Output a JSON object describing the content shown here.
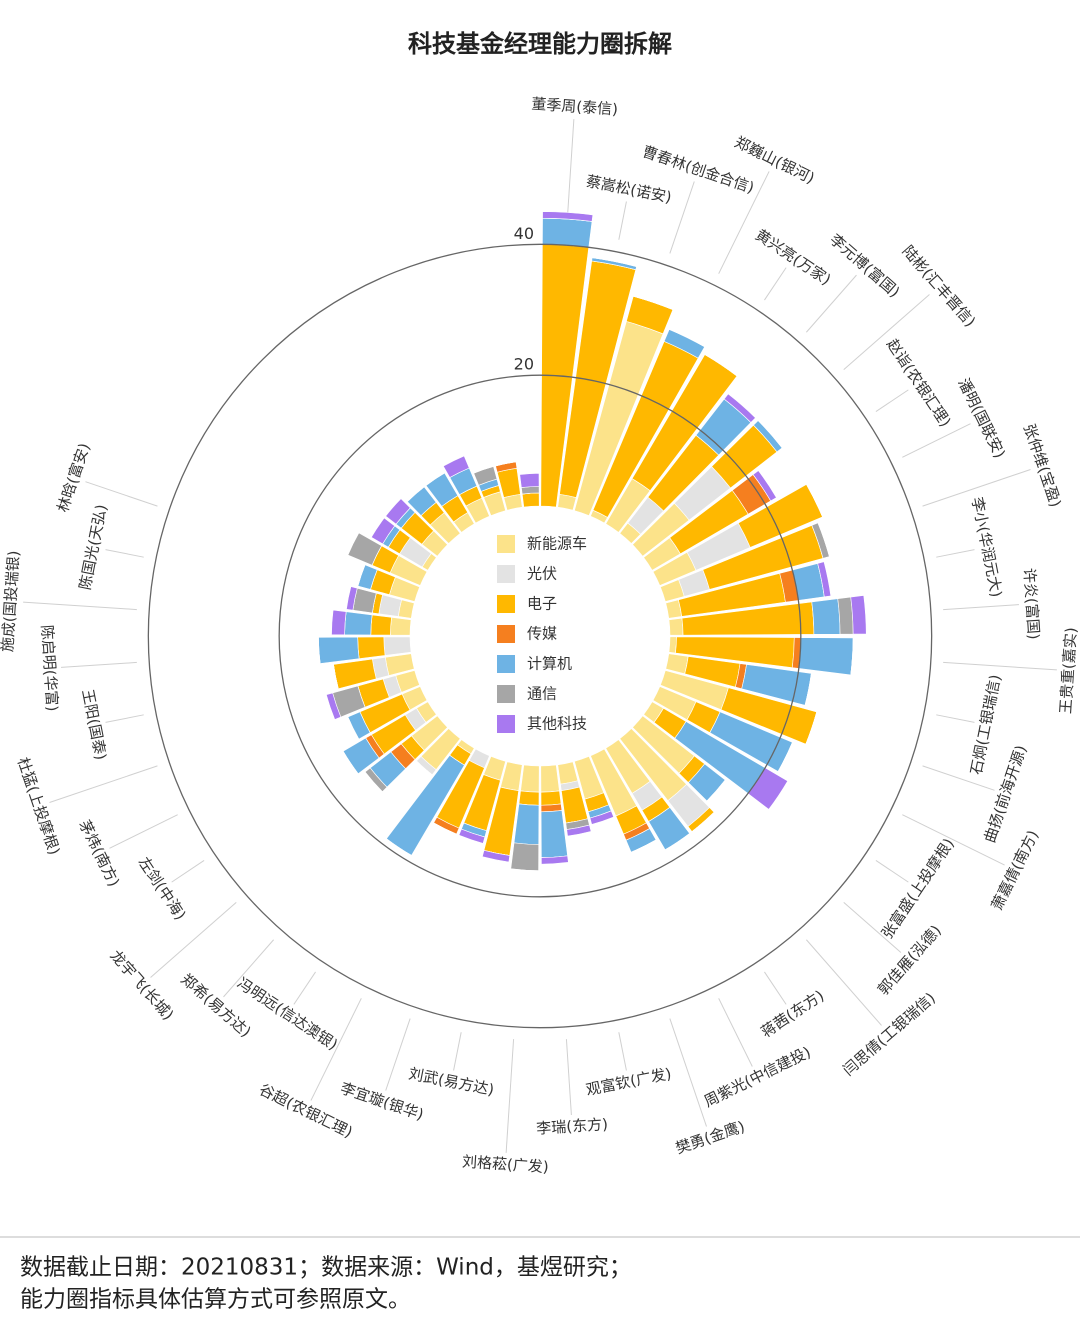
{
  "chart_data": {
    "type": "radial-stacked-bar",
    "title": "科技基金经理能力圈拆解",
    "categories": [
      "董季周(泰信)",
      "蔡嵩松(诺安)",
      "曹春林(创金合信)",
      "郑巍山(银河)",
      "黄兴亮(万家)",
      "李元博(富国)",
      "陆彬(汇丰晋信)",
      "赵诣(农银汇理)",
      "潘明(国联安)",
      "张仲维(宝盈)",
      "李小(华润元大)",
      "许炎(富国)",
      "王贵重(嘉实)",
      "石炯(工银瑞信)",
      "曲扬(前海开源)",
      "萧嘉倩(南方)",
      "张富盛(上投摩根)",
      "郭佳雁(泓德)",
      "闫思倩(工银瑞信)",
      "蒋茜(东方)",
      "周紫光(中信建投)",
      "樊勇(金鹰)",
      "观富钦(广发)",
      "李瑞(东方)",
      "刘格菘(广发)",
      "刘武(易方达)",
      "李宜璇(银华)",
      "谷超(农银汇理)",
      "冯明远(信达澳银)",
      "郑希(易方达)",
      "龙宇飞(长城)",
      "左剑(中海)",
      "茅炜(南方)",
      "杜猛(上投摩根)",
      "王阳(国泰)",
      "陈启明(华富)",
      "施成(国投瑞银)",
      "陈国光(天弘)",
      "林晗(富安)",
      null,
      null,
      null,
      null,
      null,
      null,
      null,
      null,
      null
    ],
    "series": [
      {
        "name": "新能源车",
        "color": "#FCE38A",
        "values": [
          0,
          2,
          30,
          1,
          8,
          2,
          9,
          5,
          6,
          3,
          2,
          2,
          1,
          3,
          10,
          6,
          2,
          10,
          12,
          8,
          10,
          6,
          3,
          4,
          4,
          4,
          3,
          0,
          1,
          6,
          5,
          2,
          3,
          3,
          4,
          0,
          3,
          2,
          4,
          5,
          1,
          3,
          4,
          2,
          3,
          3,
          2,
          0
        ]
      },
      {
        "name": "光伏",
        "color": "#E3E3E3",
        "values": [
          0,
          0,
          0,
          0,
          0,
          5,
          8,
          0,
          9,
          4,
          0,
          0,
          0,
          0,
          0,
          0,
          0,
          0,
          5,
          3,
          0,
          0,
          1,
          0,
          0,
          0,
          0,
          2,
          0,
          1,
          0,
          2,
          0,
          2,
          2,
          4,
          0,
          3,
          0,
          0,
          4,
          0,
          0,
          0,
          0,
          0,
          0,
          0
        ]
      },
      {
        "name": "电子",
        "color": "#FFB800",
        "values": [
          40,
          36,
          4,
          28,
          22,
          12,
          9,
          12,
          12,
          18,
          16,
          20,
          18,
          8,
          14,
          4,
          4,
          2,
          1,
          2,
          3,
          2,
          5,
          2,
          2,
          10,
          8,
          10,
          2,
          0,
          2,
          6,
          7,
          4,
          6,
          4,
          3,
          1,
          3,
          3,
          2,
          4,
          2,
          3,
          2,
          1,
          4,
          2
        ]
      },
      {
        "name": "传媒",
        "color": "#F57F1F",
        "values": [
          0,
          0,
          0,
          0,
          0,
          0,
          0,
          4,
          0,
          0,
          2,
          0,
          1,
          1,
          0,
          0,
          0,
          0,
          0,
          0,
          1,
          0,
          0,
          1,
          0,
          0,
          0,
          1,
          0,
          0,
          2,
          1,
          0,
          0,
          0,
          0,
          0,
          0,
          0,
          0,
          0,
          0,
          0,
          0,
          0,
          0,
          1,
          0
        ]
      },
      {
        "name": "计算机",
        "color": "#6EB3E4",
        "values": [
          4,
          0.5,
          0,
          2,
          0,
          7,
          1,
          0,
          0,
          0,
          4,
          4,
          8,
          10,
          0,
          12,
          14,
          4,
          0,
          5,
          2,
          1,
          0,
          7,
          6,
          0,
          1,
          0,
          16,
          0,
          4,
          4,
          2,
          0,
          0,
          6,
          4,
          0,
          2,
          0,
          1,
          1,
          3,
          4,
          3,
          1,
          0,
          0
        ]
      },
      {
        "name": "通信",
        "color": "#A6A6A6",
        "values": [
          0,
          0,
          0,
          0,
          0,
          0,
          0,
          0,
          0,
          1,
          0,
          2,
          0,
          0,
          0,
          0,
          0,
          0,
          0,
          0,
          0,
          0,
          1,
          0,
          4,
          0,
          0,
          0,
          0,
          0,
          1,
          0,
          0,
          4,
          0,
          0,
          0,
          3,
          0,
          4,
          0,
          0,
          0,
          0,
          0,
          2,
          0,
          1
        ]
      },
      {
        "name": "其他科技",
        "color": "#A879F0",
        "values": [
          1,
          0,
          0,
          0,
          0,
          1,
          0,
          1,
          0,
          0,
          1,
          2,
          0,
          0,
          0,
          0,
          4,
          0,
          0,
          0,
          0,
          1,
          1,
          1,
          0,
          1,
          1,
          0,
          0,
          0,
          0,
          0,
          0,
          1,
          0,
          0,
          2,
          1,
          0,
          0,
          2,
          2,
          0,
          0,
          2,
          0,
          0,
          2
        ]
      }
    ],
    "ylim": [
      0,
      48
    ],
    "yticks": [
      20,
      40
    ],
    "grid": true,
    "legend": "center",
    "footnote": [
      "数据截止日期：20210831；数据来源：Wind，基煜研究；",
      "能力圈指标具体估算方式可参照原文。"
    ]
  }
}
